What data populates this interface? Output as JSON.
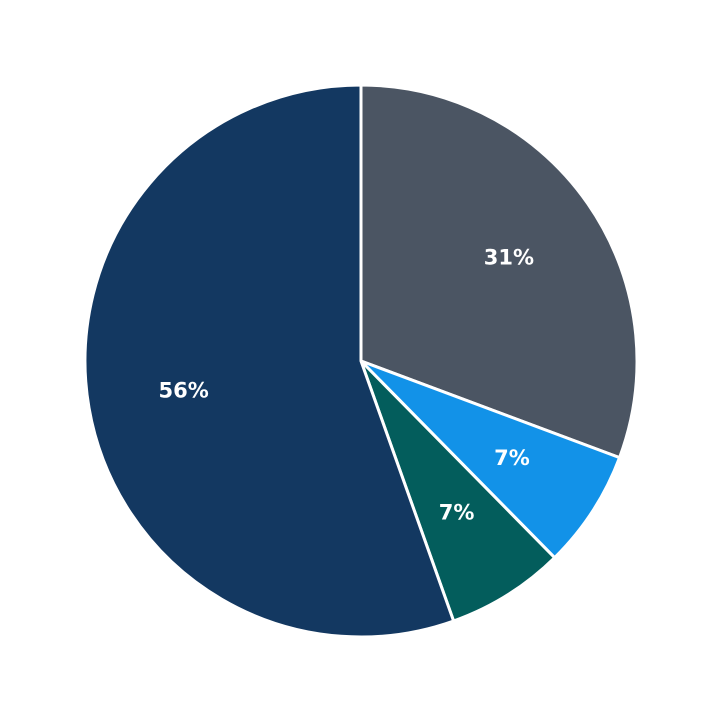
{
  "chart_data": {
    "type": "pie",
    "values": [
      31,
      7,
      7,
      56
    ],
    "value_labels": [
      "31%",
      "7%",
      "7%",
      "56%"
    ],
    "colors": [
      "#4b5563",
      "#1292e8",
      "#035d5c",
      "#133861"
    ],
    "start_angle": 90,
    "direction": "clockwise"
  }
}
